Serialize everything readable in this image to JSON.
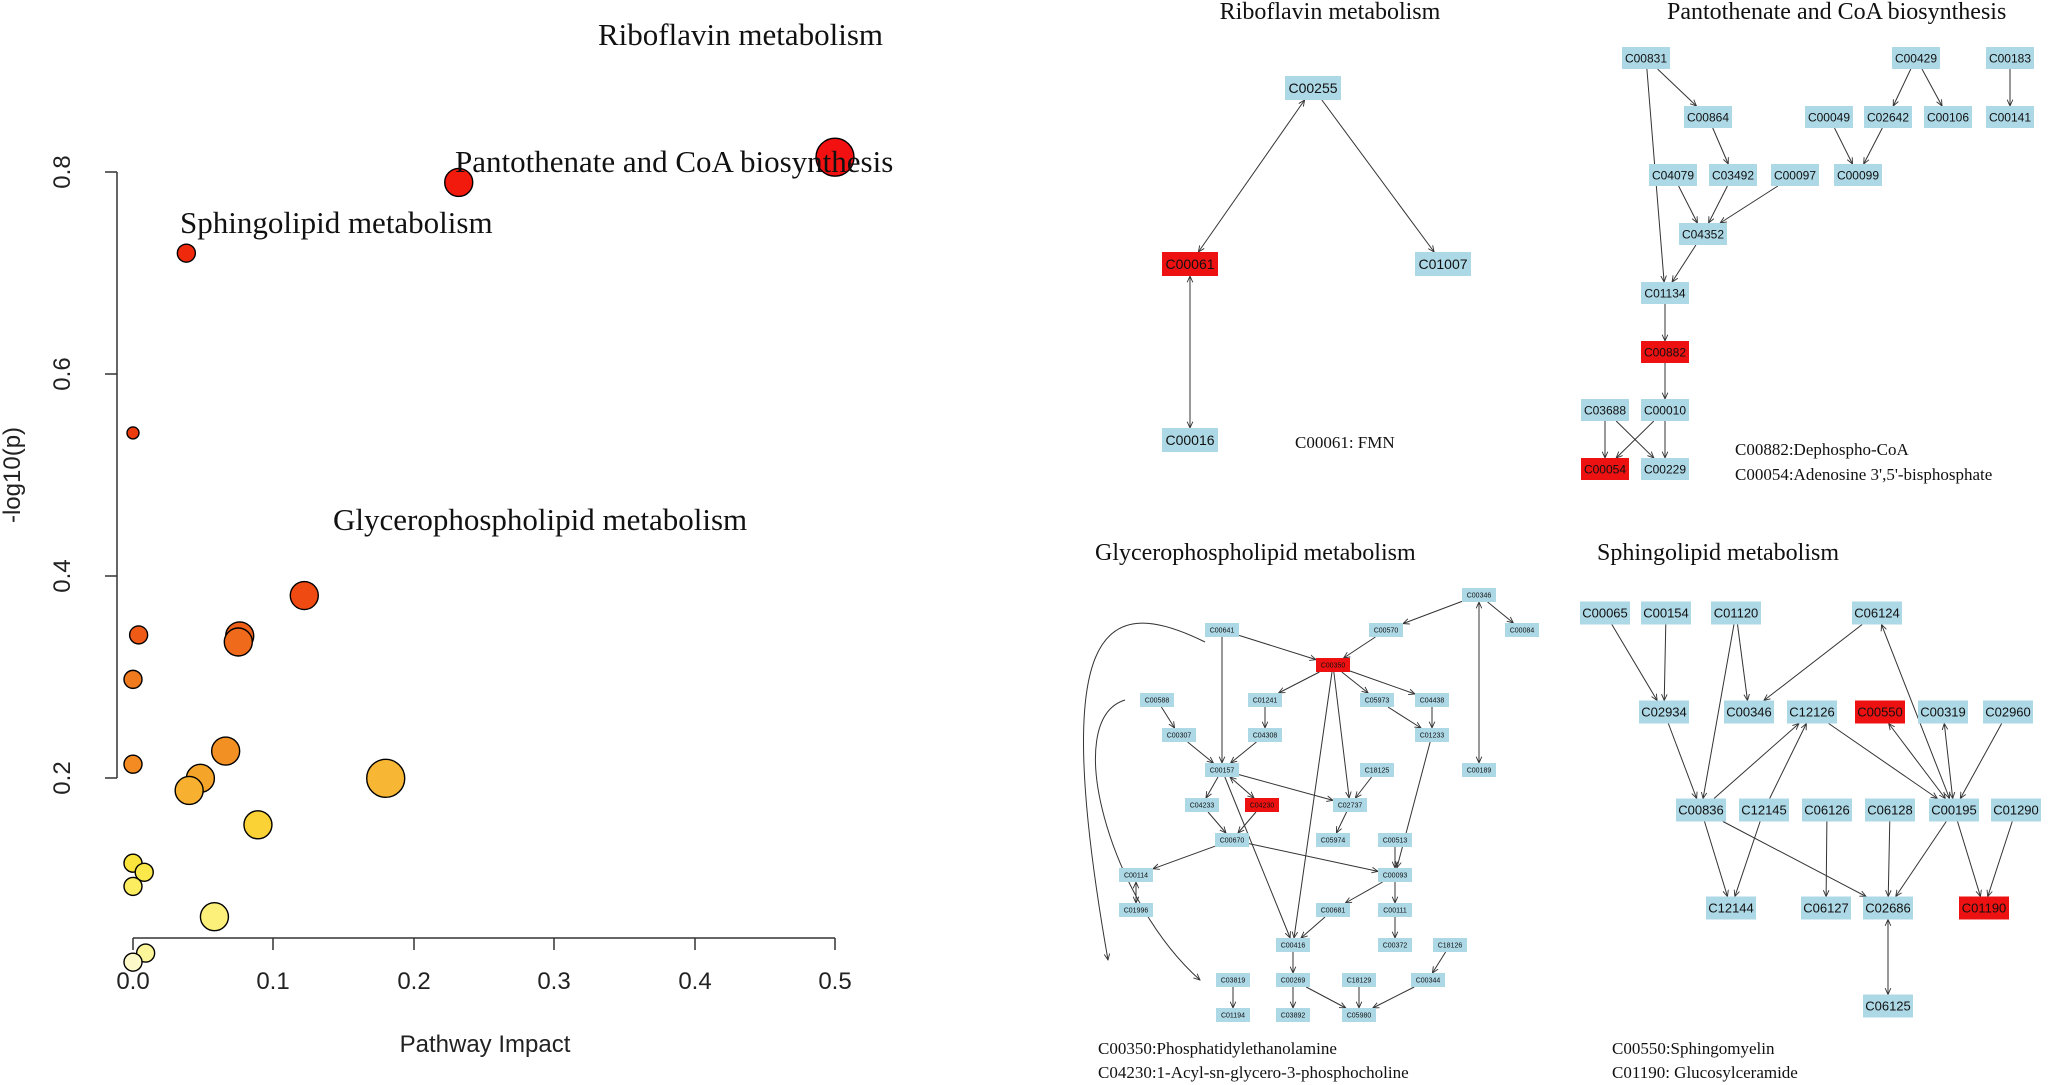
{
  "scatter": {
    "xlabel": "Pathway Impact",
    "ylabel": "-log10(p)",
    "xticks": [
      "0.0",
      "0.1",
      "0.2",
      "0.3",
      "0.4",
      "0.5"
    ],
    "yticks": [
      "0.2",
      "0.4",
      "0.6",
      "0.8"
    ],
    "labels": {
      "riboflavin": "Riboflavin metabolism",
      "pantothenate": "Pantothenate and CoA biosynthesis",
      "sphingolipid": "Sphingolipid metabolism",
      "glycero": "Glycerophospholipid metabolism"
    }
  },
  "chart_data": {
    "type": "scatter",
    "xlabel": "Pathway Impact",
    "ylabel": "-log10(p)",
    "xlim": [
      -0.01,
      0.52
    ],
    "ylim": [
      0.07,
      0.9
    ],
    "points": [
      {
        "x": 0.5,
        "y": 0.88,
        "size": "large",
        "color": "#f21010",
        "label": "Riboflavin metabolism"
      },
      {
        "x": 0.232,
        "y": 0.855,
        "size": "medium",
        "color": "#f21a0c",
        "label": "Pantothenate and CoA biosynthesis"
      },
      {
        "x": 0.038,
        "y": 0.785,
        "size": "small",
        "color": "#ef2a0c",
        "label": "Sphingolipid metabolism"
      },
      {
        "x": 0.0,
        "y": 0.607,
        "size": "tiny",
        "color": "#ec3b0c"
      },
      {
        "x": 0.122,
        "y": 0.446,
        "size": "medium",
        "color": "#ef4a12",
        "label": "Glycerophospholipid metabolism"
      },
      {
        "x": 0.004,
        "y": 0.407,
        "size": "small",
        "color": "#ef5a16"
      },
      {
        "x": 0.076,
        "y": 0.406,
        "size": "medium",
        "color": "#ef6018"
      },
      {
        "x": 0.075,
        "y": 0.4,
        "size": "medium",
        "color": "#ef6a1a"
      },
      {
        "x": 0.0,
        "y": 0.363,
        "size": "small",
        "color": "#f07a1e"
      },
      {
        "x": 0.0,
        "y": 0.279,
        "size": "small",
        "color": "#f38a22"
      },
      {
        "x": 0.066,
        "y": 0.292,
        "size": "medium",
        "color": "#f39024"
      },
      {
        "x": 0.048,
        "y": 0.265,
        "size": "medium",
        "color": "#f5a42a"
      },
      {
        "x": 0.04,
        "y": 0.253,
        "size": "medium",
        "color": "#f7b030"
      },
      {
        "x": 0.18,
        "y": 0.265,
        "size": "large",
        "color": "#f7b634"
      },
      {
        "x": 0.089,
        "y": 0.219,
        "size": "medium",
        "color": "#fad235"
      },
      {
        "x": 0.0,
        "y": 0.181,
        "size": "small",
        "color": "#fbe53c"
      },
      {
        "x": 0.008,
        "y": 0.172,
        "size": "small",
        "color": "#fbe84a"
      },
      {
        "x": 0.0,
        "y": 0.158,
        "size": "small",
        "color": "#fced60"
      },
      {
        "x": 0.058,
        "y": 0.128,
        "size": "medium",
        "color": "#fcf07a"
      },
      {
        "x": 0.009,
        "y": 0.092,
        "size": "small",
        "color": "#fdf59a"
      },
      {
        "x": 0.0,
        "y": 0.083,
        "size": "small",
        "color": "#fdf9c8"
      }
    ]
  },
  "panels": {
    "riboflavin": {
      "title": "Riboflavin metabolism",
      "notes": [
        "C00061: FMN"
      ]
    },
    "pantothenate": {
      "title": "Pantothenate and CoA biosynthesis",
      "notes": [
        "C00882:Dephospho-CoA",
        "C00054:Adenosine 3',5'-bisphosphate"
      ]
    },
    "glycero": {
      "title": "Glycerophospholipid metabolism",
      "notes": [
        "C00350:Phosphatidylethanolamine",
        "C04230:1-Acyl-sn-glycero-3-phosphocholine"
      ]
    },
    "sphingo": {
      "title": "Sphingolipid metabolism",
      "notes": [
        "C00550:Sphingomyelin",
        "C01190: Glucosylceramide"
      ]
    }
  },
  "colors": {
    "node": "#add8e6",
    "highlight": "#ee1111"
  },
  "graphs": [
    {
      "id": "riboflavin",
      "font": 14,
      "nodes": [
        {
          "id": "C00255",
          "label": "C00255"
        },
        {
          "id": "C00061",
          "label": "C00061",
          "hl": true
        },
        {
          "id": "C01007",
          "label": "C01007"
        },
        {
          "id": "C00016",
          "label": "C00016"
        }
      ],
      "edges": [
        [
          "C00255",
          "C00061",
          3
        ],
        [
          "C00255",
          "C01007",
          1
        ],
        [
          "C00061",
          "C00016",
          3
        ]
      ]
    },
    {
      "id": "pantothenate",
      "font": 12,
      "nodes": [
        {
          "id": "C00831",
          "label": "C00831"
        },
        {
          "id": "C00429",
          "label": "C00429"
        },
        {
          "id": "C00183",
          "label": "C00183"
        },
        {
          "id": "C00864",
          "label": "C00864"
        },
        {
          "id": "C00049",
          "label": "C00049"
        },
        {
          "id": "C02642",
          "label": "C02642"
        },
        {
          "id": "C00106",
          "label": "C00106"
        },
        {
          "id": "C00141",
          "label": "C00141"
        },
        {
          "id": "C04079",
          "label": "C04079"
        },
        {
          "id": "C03492",
          "label": "C03492"
        },
        {
          "id": "C00097",
          "label": "C00097"
        },
        {
          "id": "C00099",
          "label": "C00099"
        },
        {
          "id": "C04352",
          "label": "C04352"
        },
        {
          "id": "C01134",
          "label": "C01134"
        },
        {
          "id": "C00882",
          "label": "C00882",
          "hl": true
        },
        {
          "id": "C03688",
          "label": "C03688"
        },
        {
          "id": "C00010",
          "label": "C00010"
        },
        {
          "id": "C00054",
          "label": "C00054",
          "hl": true
        },
        {
          "id": "C00229",
          "label": "C00229"
        }
      ],
      "edges": [
        [
          "C00831",
          "C00864",
          1
        ],
        [
          "C00429",
          "C02642",
          1
        ],
        [
          "C00429",
          "C00106",
          1
        ],
        [
          "C00183",
          "C00141",
          1
        ],
        [
          "C00864",
          "C03492",
          1
        ],
        [
          "C00049",
          "C00099",
          1
        ],
        [
          "C02642",
          "C00099",
          1
        ],
        [
          "C04079",
          "C04352",
          1
        ],
        [
          "C03492",
          "C04352",
          1
        ],
        [
          "C00097",
          "C04352",
          1
        ],
        [
          "C04352",
          "C01134",
          1
        ],
        [
          "C00831",
          "C01134",
          1
        ],
        [
          "C01134",
          "C00882",
          1
        ],
        [
          "C00882",
          "C00010",
          1
        ],
        [
          "C03688",
          "C00054",
          1
        ],
        [
          "C03688",
          "C00229",
          1
        ],
        [
          "C00010",
          "C00229",
          1
        ],
        [
          "C00010",
          "C00054",
          1
        ]
      ]
    },
    {
      "id": "glycero",
      "font": 7,
      "nodes": [
        {
          "id": "C00346",
          "label": "C00346"
        },
        {
          "id": "C00570",
          "label": "C00570"
        },
        {
          "id": "C00084",
          "label": "C00084"
        },
        {
          "id": "C00641",
          "label": "C00641"
        },
        {
          "id": "C00350",
          "label": "C00350",
          "hl": true
        },
        {
          "id": "C00588",
          "label": "C00588"
        },
        {
          "id": "C01241",
          "label": "C01241"
        },
        {
          "id": "C05973",
          "label": "C05973"
        },
        {
          "id": "C04438",
          "label": "C04438"
        },
        {
          "id": "C00307",
          "label": "C00307"
        },
        {
          "id": "C04308",
          "label": "C04308"
        },
        {
          "id": "C01233",
          "label": "C01233"
        },
        {
          "id": "C00157",
          "label": "C00157"
        },
        {
          "id": "C18125",
          "label": "C18125"
        },
        {
          "id": "C00189",
          "label": "C00189"
        },
        {
          "id": "C04233",
          "label": "C04233"
        },
        {
          "id": "C04230",
          "label": "C04230",
          "hl": true
        },
        {
          "id": "C02737",
          "label": "C02737"
        },
        {
          "id": "C00670",
          "label": "C00670"
        },
        {
          "id": "C05974",
          "label": "C05974"
        },
        {
          "id": "C00513",
          "label": "C00513"
        },
        {
          "id": "C00114",
          "label": "C00114"
        },
        {
          "id": "C00093",
          "label": "C00093"
        },
        {
          "id": "C01996",
          "label": "C01996"
        },
        {
          "id": "C00681",
          "label": "C00681"
        },
        {
          "id": "C00111",
          "label": "C00111"
        },
        {
          "id": "C00416",
          "label": "C00416"
        },
        {
          "id": "C00372",
          "label": "C00372"
        },
        {
          "id": "C18126",
          "label": "C18126"
        },
        {
          "id": "C03819",
          "label": "C03819"
        },
        {
          "id": "C00269",
          "label": "C00269"
        },
        {
          "id": "C18129",
          "label": "C18129"
        },
        {
          "id": "C00344",
          "label": "C00344"
        },
        {
          "id": "C01194",
          "label": "C01194"
        },
        {
          "id": "C03892",
          "label": "C03892"
        },
        {
          "id": "C05980",
          "label": "C05980"
        }
      ],
      "edges": [
        [
          "C00346",
          "C00570",
          1
        ],
        [
          "C00346",
          "C00084",
          1
        ],
        [
          "C00570",
          "C00350",
          1
        ],
        [
          "C00641",
          "C00350",
          1
        ],
        [
          "C00350",
          "C01241",
          1
        ],
        [
          "C00350",
          "C05973",
          1
        ],
        [
          "C00350",
          "C04438",
          1
        ],
        [
          "C00350",
          "C02737",
          1
        ],
        [
          "C00588",
          "C00307",
          1
        ],
        [
          "C01241",
          "C04308",
          1
        ],
        [
          "C04438",
          "C01233",
          1
        ],
        [
          "C05973",
          "C01233",
          1
        ],
        [
          "C00307",
          "C00157",
          1
        ],
        [
          "C04308",
          "C00157",
          1
        ],
        [
          "C00641",
          "C00157",
          1
        ],
        [
          "C00157",
          "C02737",
          1
        ],
        [
          "C00157",
          "C04233",
          1
        ],
        [
          "C00157",
          "C04230",
          3
        ],
        [
          "C04233",
          "C00670",
          1
        ],
        [
          "C04230",
          "C00670",
          1
        ],
        [
          "C18125",
          "C02737",
          1
        ],
        [
          "C02737",
          "C05974",
          1
        ],
        [
          "C00670",
          "C00114",
          1
        ],
        [
          "C00670",
          "C00093",
          1
        ],
        [
          "C00513",
          "C00093",
          1
        ],
        [
          "C00114",
          "C01996",
          3
        ],
        [
          "C00093",
          "C00681",
          1
        ],
        [
          "C00093",
          "C00111",
          1
        ],
        [
          "C00111",
          "C00372",
          1
        ],
        [
          "C01233",
          "C00093",
          1
        ],
        [
          "C00189",
          "C00346",
          3
        ],
        [
          "C00416",
          "C00269",
          1
        ],
        [
          "C00269",
          "C03892",
          1
        ],
        [
          "C00269",
          "C05980",
          1
        ],
        [
          "C03819",
          "C01194",
          1
        ],
        [
          "C18129",
          "C05980",
          1
        ],
        [
          "C00344",
          "C05980",
          1
        ],
        [
          "C18126",
          "C00344",
          1
        ],
        [
          "C00681",
          "C00416",
          1
        ],
        [
          "C00157",
          "C00416",
          1
        ],
        [
          "C00350",
          "C00416",
          1
        ]
      ],
      "curves": [
        "M 1205 642 C 1100 590, 1050 630, 1108 960",
        "M 1125 700 C 1060 720, 1110 900, 1200 980"
      ]
    },
    {
      "id": "sphingo",
      "font": 13,
      "nodes": [
        {
          "id": "C00065",
          "label": "C00065"
        },
        {
          "id": "C00154",
          "label": "C00154"
        },
        {
          "id": "C01120",
          "label": "C01120"
        },
        {
          "id": "C06124",
          "label": "C06124"
        },
        {
          "id": "C02934",
          "label": "C02934"
        },
        {
          "id": "C00346",
          "label": "C00346"
        },
        {
          "id": "C12126",
          "label": "C12126"
        },
        {
          "id": "C00550",
          "label": "C00550",
          "hl": true
        },
        {
          "id": "C00319",
          "label": "C00319"
        },
        {
          "id": "C02960",
          "label": "C02960"
        },
        {
          "id": "C00836",
          "label": "C00836"
        },
        {
          "id": "C12145",
          "label": "C12145"
        },
        {
          "id": "C06126",
          "label": "C06126"
        },
        {
          "id": "C06128",
          "label": "C06128"
        },
        {
          "id": "C00195",
          "label": "C00195"
        },
        {
          "id": "C01290",
          "label": "C01290"
        },
        {
          "id": "C12144",
          "label": "C12144"
        },
        {
          "id": "C06127",
          "label": "C06127"
        },
        {
          "id": "C02686",
          "label": "C02686"
        },
        {
          "id": "C01190",
          "label": "C01190",
          "hl": true
        },
        {
          "id": "C06125",
          "label": "C06125"
        }
      ],
      "edges": [
        [
          "C00065",
          "C02934",
          1
        ],
        [
          "C00154",
          "C02934",
          1
        ],
        [
          "C01120",
          "C00346",
          1
        ],
        [
          "C06124",
          "C00346",
          1
        ],
        [
          "C06124",
          "C00195",
          3
        ],
        [
          "C02934",
          "C00836",
          1
        ],
        [
          "C01120",
          "C00836",
          1
        ],
        [
          "C00836",
          "C12144",
          1
        ],
        [
          "C12145",
          "C12144",
          1
        ],
        [
          "C00836",
          "C12126",
          1
        ],
        [
          "C12145",
          "C12126",
          1
        ],
        [
          "C12126",
          "C00195",
          1
        ],
        [
          "C00550",
          "C00195",
          3
        ],
        [
          "C00319",
          "C00195",
          3
        ],
        [
          "C02960",
          "C00195",
          1
        ],
        [
          "C06126",
          "C06127",
          1
        ],
        [
          "C06128",
          "C02686",
          1
        ],
        [
          "C00195",
          "C02686",
          1
        ],
        [
          "C00195",
          "C01190",
          1
        ],
        [
          "C01290",
          "C01190",
          1
        ],
        [
          "C02686",
          "C06125",
          3
        ],
        [
          "C00836",
          "C02686",
          1
        ]
      ]
    }
  ]
}
